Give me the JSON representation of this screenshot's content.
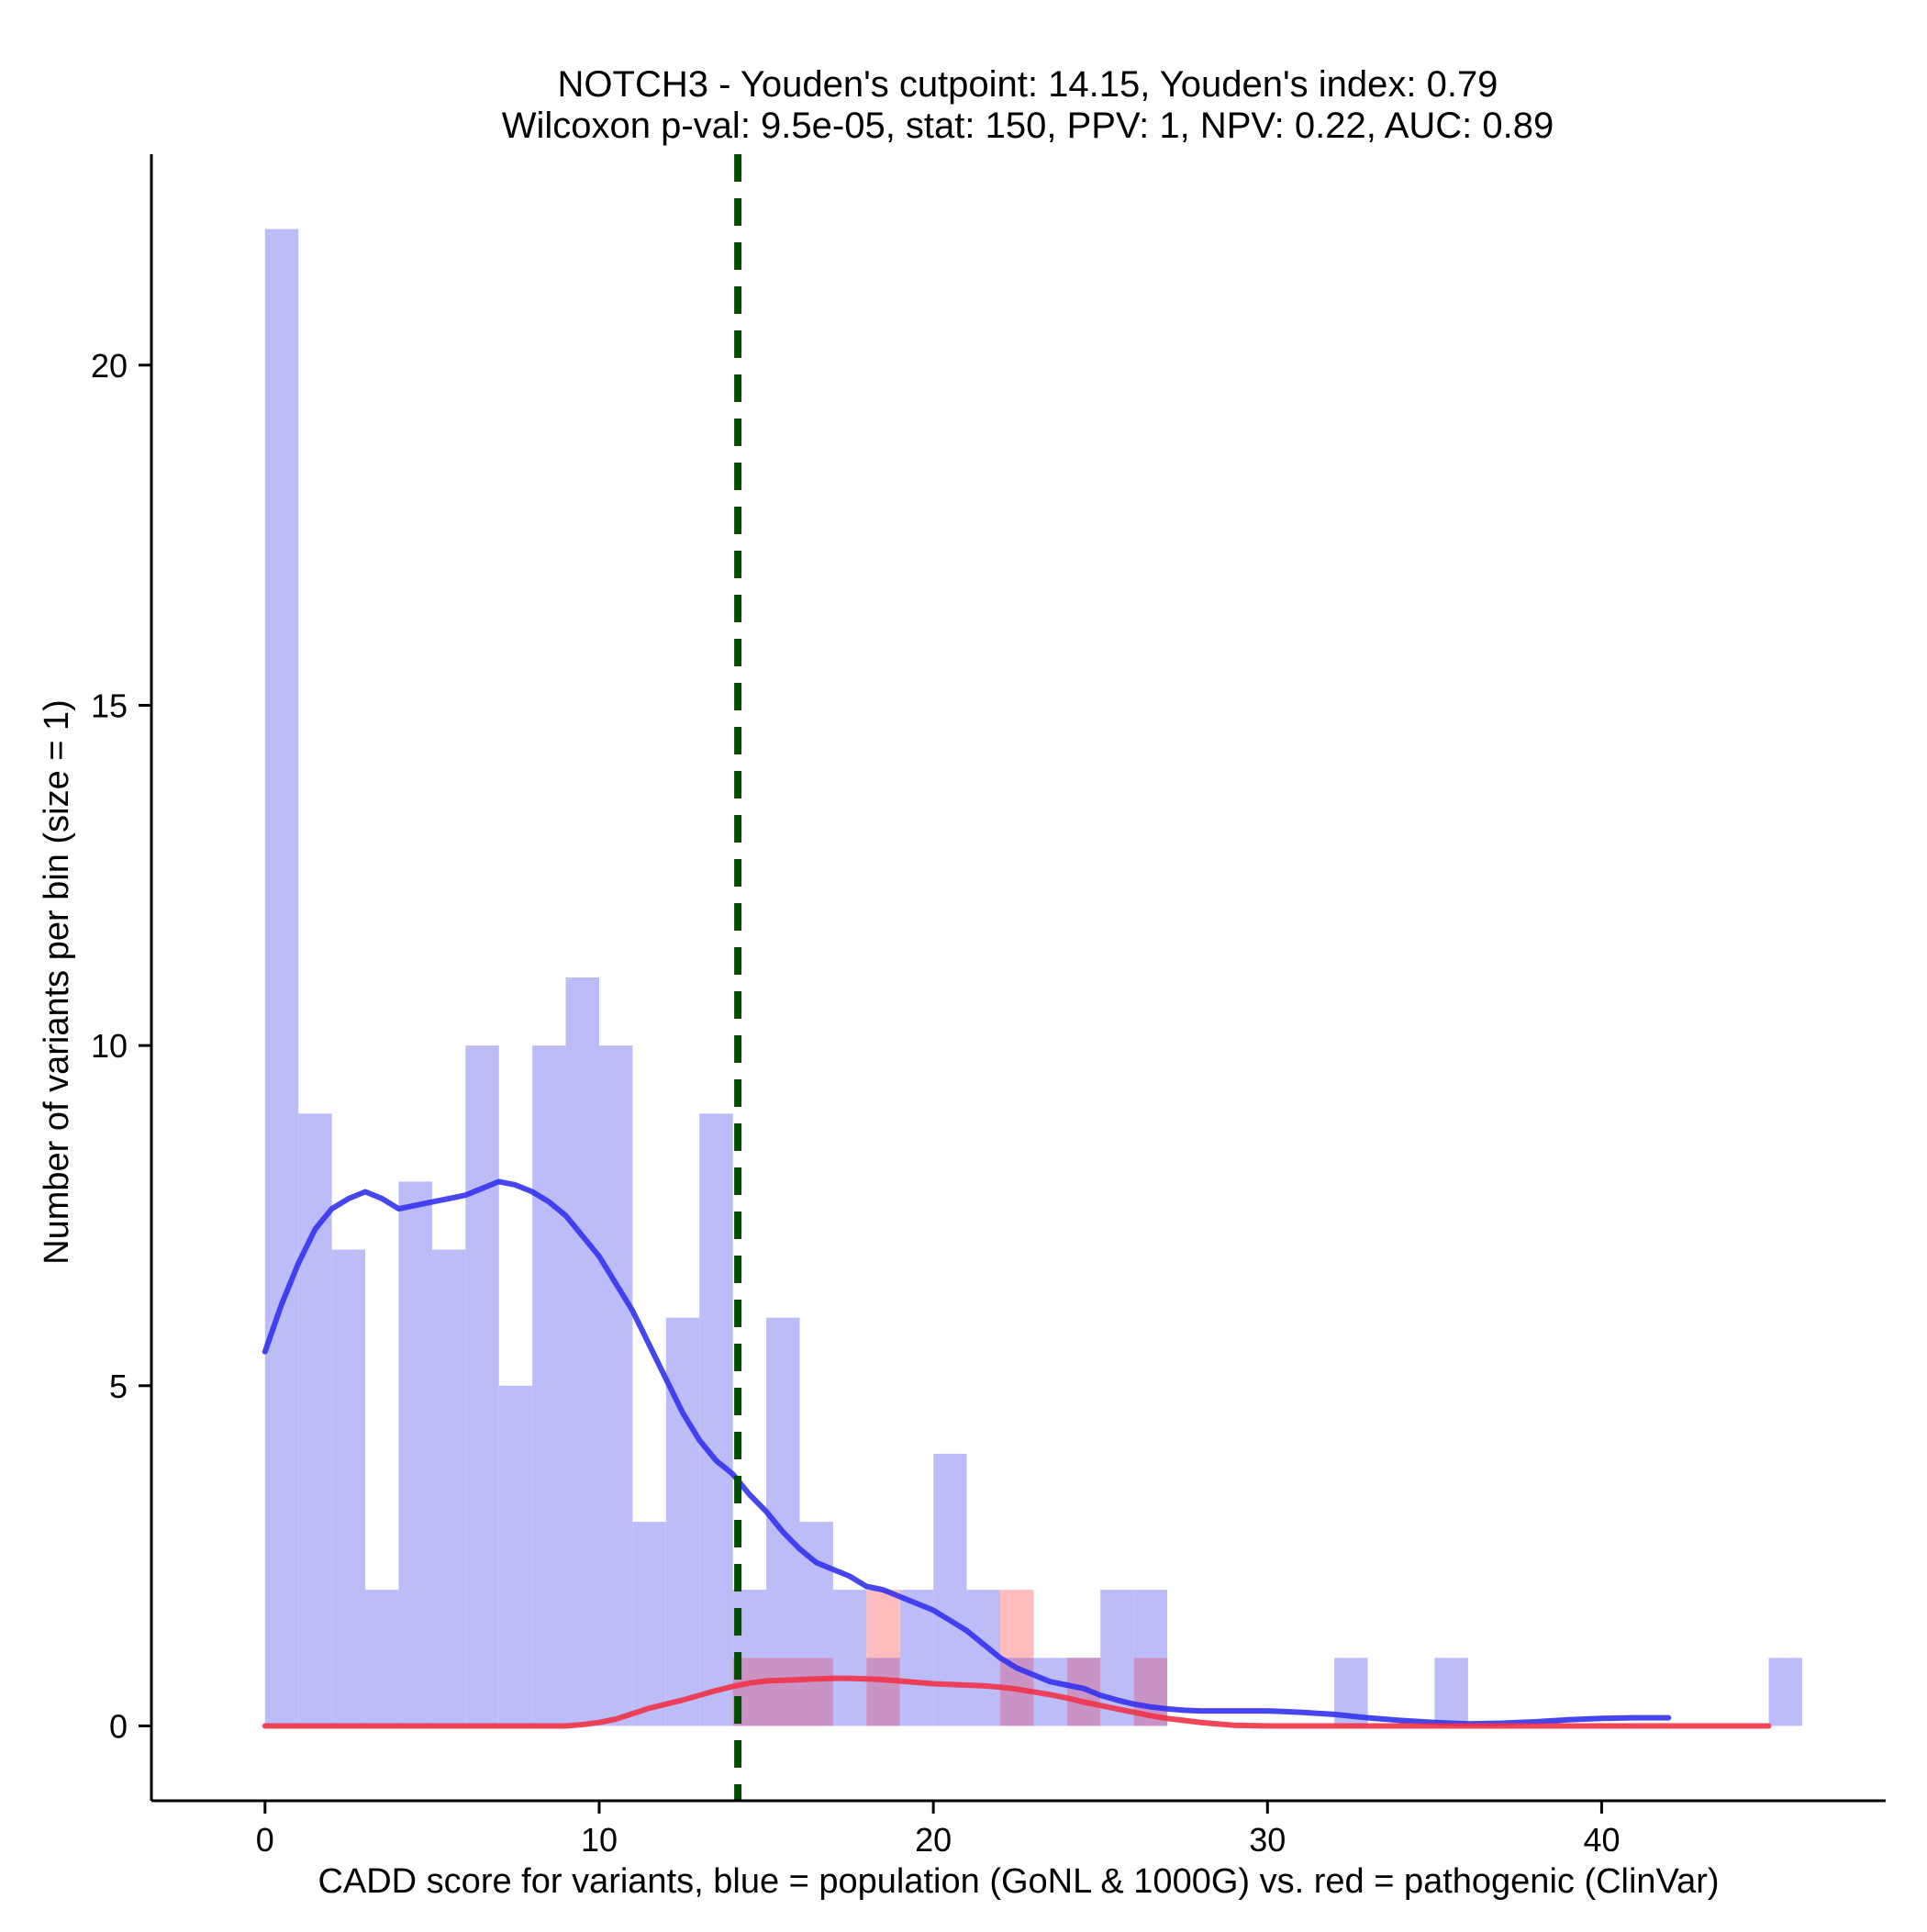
{
  "chart_data": {
    "type": "bar",
    "title_lines": [
      "NOTCH3 - Youden's cutpoint: 14.15, Youden's index: 0.79",
      "Wilcoxon p-val: 9.5e-05, stat: 150, PPV: 1, NPV: 0.22, AUC: 0.89"
    ],
    "xlabel": "CADD score for variants, blue = population (GoNL & 1000G) vs. red = pathogenic (ClinVar)",
    "ylabel": "Number of variants per bin (size = 1)",
    "xlim": [
      -3.4,
      48.5
    ],
    "ylim": [
      -1.1,
      23.1
    ],
    "x_ticks": [
      0,
      10,
      20,
      30,
      40
    ],
    "y_ticks": [
      0,
      5,
      10,
      15,
      20
    ],
    "bin_width": 1,
    "colors": {
      "population_fill": "#bcbcf8",
      "pathogenic_fill": "#ffbcbc",
      "overlap_fill": "#c993c6",
      "population_line": "#3232f0",
      "pathogenic_line": "#f03246",
      "cutpoint_line": "#004d00"
    },
    "cutpoint": 14.15,
    "series": [
      {
        "name": "population",
        "bins": [
          {
            "x": 0,
            "count": 22
          },
          {
            "x": 1,
            "count": 9
          },
          {
            "x": 2,
            "count": 7
          },
          {
            "x": 3,
            "count": 2
          },
          {
            "x": 4,
            "count": 8
          },
          {
            "x": 5,
            "count": 7
          },
          {
            "x": 6,
            "count": 10
          },
          {
            "x": 7,
            "count": 5
          },
          {
            "x": 8,
            "count": 10
          },
          {
            "x": 9,
            "count": 11
          },
          {
            "x": 10,
            "count": 10
          },
          {
            "x": 11,
            "count": 3
          },
          {
            "x": 12,
            "count": 6
          },
          {
            "x": 13,
            "count": 9
          },
          {
            "x": 14,
            "count": 2
          },
          {
            "x": 15,
            "count": 6
          },
          {
            "x": 16,
            "count": 3
          },
          {
            "x": 17,
            "count": 2
          },
          {
            "x": 18,
            "count": 1
          },
          {
            "x": 19,
            "count": 2
          },
          {
            "x": 20,
            "count": 4
          },
          {
            "x": 21,
            "count": 2
          },
          {
            "x": 22,
            "count": 1
          },
          {
            "x": 23,
            "count": 1
          },
          {
            "x": 24,
            "count": 1
          },
          {
            "x": 25,
            "count": 2
          },
          {
            "x": 26,
            "count": 2
          },
          {
            "x": 32,
            "count": 1
          },
          {
            "x": 35,
            "count": 1
          },
          {
            "x": 45,
            "count": 1
          }
        ],
        "density": [
          [
            0,
            5.5
          ],
          [
            0.5,
            6.2
          ],
          [
            1,
            6.8
          ],
          [
            1.5,
            7.3
          ],
          [
            2,
            7.6
          ],
          [
            2.5,
            7.75
          ],
          [
            3,
            7.85
          ],
          [
            3.5,
            7.75
          ],
          [
            4,
            7.6
          ],
          [
            4.5,
            7.65
          ],
          [
            5,
            7.7
          ],
          [
            5.5,
            7.75
          ],
          [
            6,
            7.8
          ],
          [
            6.5,
            7.9
          ],
          [
            7,
            8.0
          ],
          [
            7.5,
            7.95
          ],
          [
            8,
            7.85
          ],
          [
            8.5,
            7.7
          ],
          [
            9,
            7.5
          ],
          [
            9.5,
            7.2
          ],
          [
            10,
            6.9
          ],
          [
            10.5,
            6.5
          ],
          [
            11,
            6.1
          ],
          [
            11.5,
            5.6
          ],
          [
            12,
            5.1
          ],
          [
            12.5,
            4.6
          ],
          [
            13,
            4.2
          ],
          [
            13.5,
            3.9
          ],
          [
            14,
            3.7
          ],
          [
            14.5,
            3.4
          ],
          [
            15,
            3.15
          ],
          [
            15.5,
            2.85
          ],
          [
            16,
            2.6
          ],
          [
            16.5,
            2.4
          ],
          [
            17,
            2.3
          ],
          [
            17.5,
            2.2
          ],
          [
            18,
            2.05
          ],
          [
            18.5,
            2.0
          ],
          [
            19,
            1.9
          ],
          [
            19.5,
            1.8
          ],
          [
            20,
            1.7
          ],
          [
            20.5,
            1.55
          ],
          [
            21,
            1.4
          ],
          [
            21.5,
            1.2
          ],
          [
            22,
            1.0
          ],
          [
            22.5,
            0.85
          ],
          [
            23,
            0.75
          ],
          [
            23.5,
            0.65
          ],
          [
            24,
            0.6
          ],
          [
            24.5,
            0.55
          ],
          [
            25,
            0.45
          ],
          [
            25.5,
            0.38
          ],
          [
            26,
            0.32
          ],
          [
            26.5,
            0.28
          ],
          [
            27,
            0.25
          ],
          [
            27.5,
            0.23
          ],
          [
            28,
            0.22
          ],
          [
            29,
            0.22
          ],
          [
            30,
            0.22
          ],
          [
            31,
            0.2
          ],
          [
            32,
            0.17
          ],
          [
            33,
            0.12
          ],
          [
            34,
            0.08
          ],
          [
            35,
            0.05
          ],
          [
            36,
            0.03
          ],
          [
            37,
            0.04
          ],
          [
            38,
            0.06
          ],
          [
            39,
            0.09
          ],
          [
            40,
            0.11
          ],
          [
            41,
            0.12
          ],
          [
            42,
            0.12
          ]
        ]
      },
      {
        "name": "pathogenic",
        "bins": [
          {
            "x": 14,
            "count": 1
          },
          {
            "x": 15,
            "count": 1
          },
          {
            "x": 16,
            "count": 1
          },
          {
            "x": 18,
            "count": 2
          },
          {
            "x": 22,
            "count": 2
          },
          {
            "x": 24,
            "count": 1
          },
          {
            "x": 26,
            "count": 1
          }
        ],
        "density": [
          [
            0,
            0
          ],
          [
            5,
            0
          ],
          [
            9,
            0
          ],
          [
            9.5,
            0.02
          ],
          [
            10,
            0.05
          ],
          [
            10.5,
            0.1
          ],
          [
            11,
            0.18
          ],
          [
            11.5,
            0.26
          ],
          [
            12,
            0.32
          ],
          [
            12.5,
            0.38
          ],
          [
            13,
            0.45
          ],
          [
            13.5,
            0.52
          ],
          [
            14,
            0.58
          ],
          [
            14.5,
            0.63
          ],
          [
            15,
            0.66
          ],
          [
            15.5,
            0.67
          ],
          [
            16,
            0.68
          ],
          [
            16.5,
            0.69
          ],
          [
            17,
            0.7
          ],
          [
            17.5,
            0.7
          ],
          [
            18,
            0.69
          ],
          [
            18.5,
            0.68
          ],
          [
            19,
            0.66
          ],
          [
            19.5,
            0.64
          ],
          [
            20,
            0.62
          ],
          [
            20.5,
            0.61
          ],
          [
            21,
            0.6
          ],
          [
            21.5,
            0.59
          ],
          [
            22,
            0.57
          ],
          [
            22.5,
            0.54
          ],
          [
            23,
            0.5
          ],
          [
            23.5,
            0.46
          ],
          [
            24,
            0.41
          ],
          [
            24.5,
            0.35
          ],
          [
            25,
            0.3
          ],
          [
            25.5,
            0.25
          ],
          [
            26,
            0.2
          ],
          [
            26.5,
            0.15
          ],
          [
            27,
            0.11
          ],
          [
            27.5,
            0.08
          ],
          [
            28,
            0.05
          ],
          [
            28.5,
            0.03
          ],
          [
            29,
            0.01
          ],
          [
            30,
            0
          ],
          [
            35,
            0
          ],
          [
            40,
            0
          ],
          [
            45,
            0
          ]
        ]
      }
    ]
  }
}
